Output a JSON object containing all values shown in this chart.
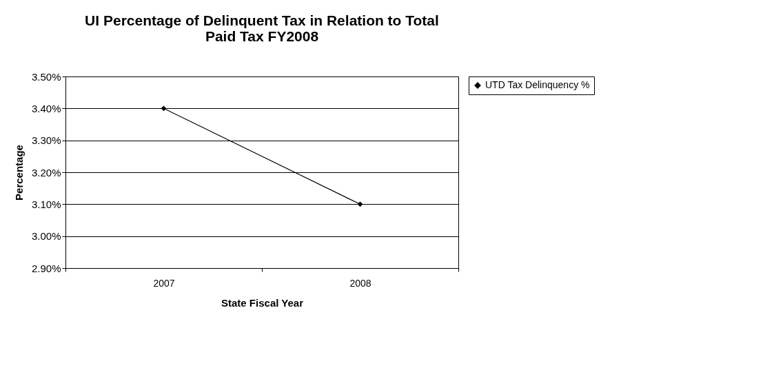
{
  "chart_data": {
    "type": "line",
    "title": "UI Percentage of Delinquent Tax in Relation to Total Paid Tax FY2008",
    "xlabel": "State Fiscal Year",
    "ylabel": "Percentage",
    "categories": [
      "2007",
      "2008"
    ],
    "series": [
      {
        "name": "UTD Tax Delinquency %",
        "color": "#000000",
        "values": [
          3.4,
          3.1
        ]
      }
    ],
    "ylim": [
      2.9,
      3.5
    ],
    "yticks": [
      {
        "value": 2.9,
        "label": "2.90%"
      },
      {
        "value": 3.0,
        "label": "3.00%"
      },
      {
        "value": 3.1,
        "label": "3.10%"
      },
      {
        "value": 3.2,
        "label": "3.20%"
      },
      {
        "value": 3.3,
        "label": "3.30%"
      },
      {
        "value": 3.4,
        "label": "3.40%"
      },
      {
        "value": 3.5,
        "label": "3.50%"
      }
    ],
    "grid": "y",
    "legend": "right",
    "marker": "diamond",
    "line_style": "solid"
  }
}
